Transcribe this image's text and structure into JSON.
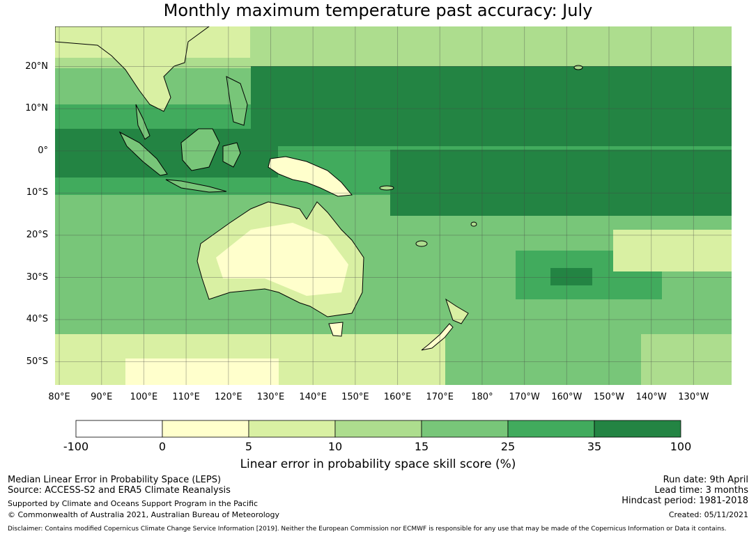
{
  "title": "Monthly maximum temperature past accuracy: July",
  "map": {
    "lat_labels": [
      "20°N",
      "10°N",
      "0°",
      "10°S",
      "20°S",
      "30°S",
      "40°S",
      "50°S"
    ],
    "lon_labels": [
      "80°E",
      "90°E",
      "100°E",
      "110°E",
      "120°E",
      "130°E",
      "140°E",
      "150°E",
      "160°E",
      "170°E",
      "180°",
      "170°W",
      "160°W",
      "150°W",
      "140°W",
      "130°W"
    ],
    "lat_values": [
      20,
      10,
      0,
      -10,
      -20,
      -30,
      -40,
      -50
    ],
    "lon_values": [
      80,
      90,
      100,
      110,
      120,
      130,
      140,
      150,
      160,
      170,
      180,
      190,
      200,
      210,
      220,
      230
    ],
    "extent": {
      "lon": [
        79,
        239
      ],
      "lat": [
        -55.5,
        29.5
      ]
    }
  },
  "colorbar": {
    "title": "Linear error in probability space skill score (%)",
    "ticks": [
      "-100",
      "0",
      "5",
      "10",
      "15",
      "25",
      "35",
      "100"
    ],
    "colors": [
      "#ffffff",
      "#ffffcc",
      "#d9f0a3",
      "#addd8e",
      "#78c679",
      "#41ab5d",
      "#238443"
    ]
  },
  "footer": {
    "left_line1": "Median Linear Error in Probability Space (LEPS)",
    "left_line2": "Source: ACCESS-S2 and ERA5 Climate Reanalysis",
    "left_line3": "Supported by Climate and Oceans Support Program in the Pacific",
    "left_line4": "© Commonwealth of Australia 2021, Australian Bureau of Meteorology",
    "right_line1": "Run date: 9th April",
    "right_line2": "Lead time: 3 months",
    "right_line3": "Hindcast period: 1981-2018",
    "right_line4": "Created: 05/11/2021",
    "disclaimer": "Disclaimer: Contains modified Copernicus Climate Change Service Information [2019]. Neither the European Commission nor ECMWF is responsible for any use that may be made of the Copernicus Information or Data it contains."
  }
}
